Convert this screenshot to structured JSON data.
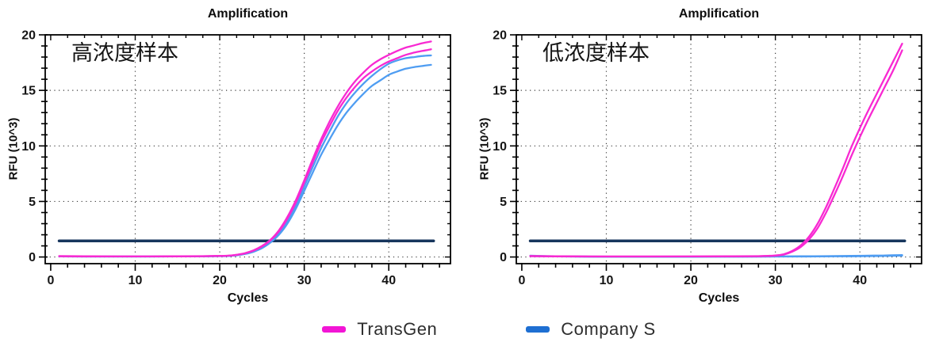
{
  "page": {
    "background": "#ffffff"
  },
  "palette": {
    "transgen_curve": "#f829d2",
    "company_s_curve": "#4f9df2",
    "company_s_legend": "#1e6fd2",
    "threshold_line": "#17365d",
    "axis": "#000000",
    "grid": "#3a3a3a"
  },
  "legend": {
    "items": [
      {
        "label": "TransGen",
        "color": "#f215d5"
      },
      {
        "label": "Company S",
        "color": "#1e6fd2"
      }
    ]
  },
  "chart_data": [
    {
      "type": "line",
      "title": "Amplification",
      "annotation": "高浓度样本",
      "xlabel": "Cycles",
      "ylabel": "RFU (10^3)",
      "xlim": [
        -0.65,
        47.3
      ],
      "ylim": [
        -0.6,
        20
      ],
      "xticks": [
        0,
        10,
        20,
        30,
        40
      ],
      "yticks": [
        0,
        5,
        10,
        15,
        20
      ],
      "x_minor_step": 2,
      "y_minor_step": 1,
      "grid_x": [
        10,
        20,
        30,
        40
      ],
      "grid_y": [
        0,
        5,
        10,
        15
      ],
      "threshold": {
        "value": 1.45,
        "x_start": 1,
        "x_end": 45.3,
        "color": "#17365d"
      },
      "series": [
        {
          "name": "CompanyS-2",
          "color": "#4f9df2",
          "points": [
            [
              1,
              0.05
            ],
            [
              5,
              0.04
            ],
            [
              10,
              0.04
            ],
            [
              15,
              0.05
            ],
            [
              18,
              0.06
            ],
            [
              20,
              0.08
            ],
            [
              21,
              0.09
            ],
            [
              22,
              0.15
            ],
            [
              23,
              0.27
            ],
            [
              24,
              0.47
            ],
            [
              25,
              0.8
            ],
            [
              26,
              1.3
            ],
            [
              27,
              2.0
            ],
            [
              28,
              3.0
            ],
            [
              29,
              4.35
            ],
            [
              30,
              5.95
            ],
            [
              31,
              7.6
            ],
            [
              32,
              9.2
            ],
            [
              33,
              10.6
            ],
            [
              34,
              11.9
            ],
            [
              35,
              13.0
            ],
            [
              36,
              13.9
            ],
            [
              37,
              14.7
            ],
            [
              38,
              15.4
            ],
            [
              39,
              15.9
            ],
            [
              40,
              16.4
            ],
            [
              41,
              16.7
            ],
            [
              42,
              16.95
            ],
            [
              43,
              17.1
            ],
            [
              44,
              17.2
            ],
            [
              45,
              17.3
            ]
          ]
        },
        {
          "name": "CompanyS-1",
          "color": "#4f9df2",
          "points": [
            [
              1,
              0.05
            ],
            [
              5,
              0.04
            ],
            [
              10,
              0.04
            ],
            [
              15,
              0.05
            ],
            [
              18,
              0.06
            ],
            [
              20,
              0.08
            ],
            [
              21,
              0.1
            ],
            [
              22,
              0.17
            ],
            [
              23,
              0.3
            ],
            [
              24,
              0.52
            ],
            [
              25,
              0.88
            ],
            [
              26,
              1.4
            ],
            [
              27,
              2.15
            ],
            [
              28,
              3.25
            ],
            [
              29,
              4.65
            ],
            [
              30,
              6.35
            ],
            [
              31,
              8.1
            ],
            [
              32,
              9.8
            ],
            [
              33,
              11.3
            ],
            [
              34,
              12.7
            ],
            [
              35,
              13.85
            ],
            [
              36,
              14.8
            ],
            [
              37,
              15.6
            ],
            [
              38,
              16.3
            ],
            [
              39,
              16.9
            ],
            [
              40,
              17.4
            ],
            [
              41,
              17.7
            ],
            [
              42,
              17.9
            ],
            [
              43,
              18.0
            ],
            [
              44,
              18.1
            ],
            [
              45,
              18.15
            ]
          ]
        },
        {
          "name": "TransGen-2",
          "color": "#f829d2",
          "points": [
            [
              1,
              0.07
            ],
            [
              5,
              0.05
            ],
            [
              10,
              0.05
            ],
            [
              15,
              0.06
            ],
            [
              18,
              0.07
            ],
            [
              20,
              0.09
            ],
            [
              21,
              0.11
            ],
            [
              22,
              0.19
            ],
            [
              23,
              0.33
            ],
            [
              24,
              0.57
            ],
            [
              25,
              0.95
            ],
            [
              26,
              1.5
            ],
            [
              27,
              2.3
            ],
            [
              28,
              3.45
            ],
            [
              29,
              4.9
            ],
            [
              30,
              6.7
            ],
            [
              31,
              8.5
            ],
            [
              32,
              10.3
            ],
            [
              33,
              11.8
            ],
            [
              34,
              13.2
            ],
            [
              35,
              14.35
            ],
            [
              36,
              15.3
            ],
            [
              37,
              16.1
            ],
            [
              38,
              16.7
            ],
            [
              39,
              17.2
            ],
            [
              40,
              17.6
            ],
            [
              41,
              17.9
            ],
            [
              42,
              18.2
            ],
            [
              43,
              18.4
            ],
            [
              44,
              18.55
            ],
            [
              45,
              18.7
            ]
          ]
        },
        {
          "name": "TransGen-1",
          "color": "#f829d2",
          "points": [
            [
              1,
              0.08
            ],
            [
              5,
              0.06
            ],
            [
              10,
              0.05
            ],
            [
              15,
              0.06
            ],
            [
              18,
              0.08
            ],
            [
              20,
              0.1
            ],
            [
              21,
              0.12
            ],
            [
              22,
              0.2
            ],
            [
              23,
              0.35
            ],
            [
              24,
              0.6
            ],
            [
              25,
              1.0
            ],
            [
              26,
              1.55
            ],
            [
              27,
              2.4
            ],
            [
              28,
              3.6
            ],
            [
              29,
              5.1
            ],
            [
              30,
              6.9
            ],
            [
              31,
              8.8
            ],
            [
              32,
              10.6
            ],
            [
              33,
              12.2
            ],
            [
              34,
              13.6
            ],
            [
              35,
              14.8
            ],
            [
              36,
              15.8
            ],
            [
              37,
              16.6
            ],
            [
              38,
              17.3
            ],
            [
              39,
              17.8
            ],
            [
              40,
              18.2
            ],
            [
              41,
              18.55
            ],
            [
              42,
              18.85
            ],
            [
              43,
              19.05
            ],
            [
              44,
              19.25
            ],
            [
              45,
              19.4
            ]
          ]
        }
      ]
    },
    {
      "type": "line",
      "title": "Amplification",
      "annotation": "低浓度样本",
      "xlabel": "Cycles",
      "ylabel": "RFU (10^3)",
      "xlim": [
        -0.65,
        47.3
      ],
      "ylim": [
        -0.6,
        20
      ],
      "xticks": [
        0,
        10,
        20,
        30,
        40
      ],
      "yticks": [
        0,
        5,
        10,
        15,
        20
      ],
      "x_minor_step": 2,
      "y_minor_step": 1,
      "grid_x": [
        10,
        20,
        30,
        40
      ],
      "grid_y": [
        0,
        5,
        10,
        15
      ],
      "threshold": {
        "value": 1.45,
        "x_start": 1,
        "x_end": 45.3,
        "color": "#17365d"
      },
      "series": [
        {
          "name": "CompanyS-1",
          "color": "#4f9df2",
          "points": [
            [
              1,
              0.12
            ],
            [
              3,
              0.08
            ],
            [
              6,
              0.05
            ],
            [
              10,
              0.03
            ],
            [
              15,
              0.03
            ],
            [
              20,
              0.03
            ],
            [
              25,
              0.04
            ],
            [
              30,
              0.05
            ],
            [
              33,
              0.06
            ],
            [
              36,
              0.08
            ],
            [
              39,
              0.1
            ],
            [
              41,
              0.12
            ],
            [
              43,
              0.14
            ],
            [
              45,
              0.18
            ]
          ]
        },
        {
          "name": "CompanyS-2",
          "color": "#4f9df2",
          "points": [
            [
              1,
              0.08
            ],
            [
              4,
              0.05
            ],
            [
              8,
              0.03
            ],
            [
              14,
              0.02
            ],
            [
              20,
              0.02
            ],
            [
              26,
              0.03
            ],
            [
              31,
              0.04
            ],
            [
              35,
              0.05
            ],
            [
              38,
              0.06
            ],
            [
              41,
              0.08
            ],
            [
              43,
              0.1
            ],
            [
              45,
              0.12
            ]
          ]
        },
        {
          "name": "TransGen-2",
          "color": "#f829d2",
          "points": [
            [
              1,
              0.07
            ],
            [
              5,
              0.05
            ],
            [
              10,
              0.04
            ],
            [
              15,
              0.04
            ],
            [
              20,
              0.05
            ],
            [
              25,
              0.06
            ],
            [
              28,
              0.07
            ],
            [
              29,
              0.09
            ],
            [
              30,
              0.12
            ],
            [
              31,
              0.22
            ],
            [
              32,
              0.48
            ],
            [
              33,
              0.9
            ],
            [
              34,
              1.6
            ],
            [
              35,
              2.6
            ],
            [
              36,
              4.0
            ],
            [
              37,
              5.6
            ],
            [
              38,
              7.3
            ],
            [
              39,
              9.1
            ],
            [
              40,
              10.8
            ],
            [
              41,
              12.4
            ],
            [
              42,
              13.9
            ],
            [
              43,
              15.4
            ],
            [
              44,
              16.9
            ],
            [
              45,
              18.6
            ]
          ]
        },
        {
          "name": "TransGen-1",
          "color": "#f829d2",
          "points": [
            [
              1,
              0.09
            ],
            [
              5,
              0.06
            ],
            [
              10,
              0.05
            ],
            [
              15,
              0.05
            ],
            [
              20,
              0.05
            ],
            [
              25,
              0.06
            ],
            [
              28,
              0.08
            ],
            [
              29,
              0.1
            ],
            [
              30,
              0.14
            ],
            [
              31,
              0.25
            ],
            [
              32,
              0.55
            ],
            [
              33,
              1.05
            ],
            [
              34,
              1.85
            ],
            [
              35,
              3.0
            ],
            [
              36,
              4.5
            ],
            [
              37,
              6.2
            ],
            [
              38,
              8.0
            ],
            [
              39,
              9.9
            ],
            [
              40,
              11.6
            ],
            [
              41,
              13.2
            ],
            [
              42,
              14.7
            ],
            [
              43,
              16.2
            ],
            [
              44,
              17.7
            ],
            [
              45,
              19.2
            ]
          ]
        }
      ]
    }
  ]
}
